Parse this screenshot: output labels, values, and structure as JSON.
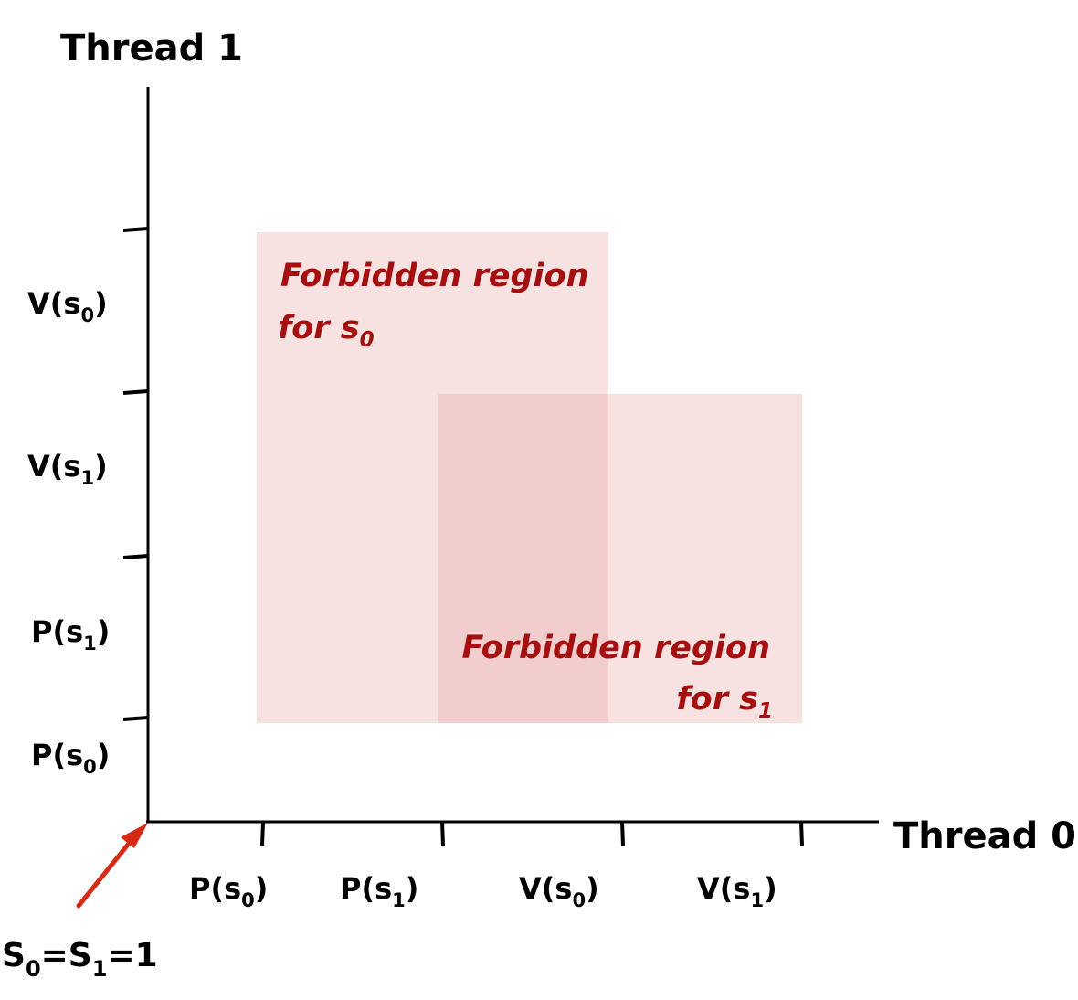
{
  "axes": {
    "y_title": "Thread 1",
    "x_title": "Thread 0"
  },
  "x_ticks": [
    {
      "base": "P(s",
      "sub": "0",
      "close": ")"
    },
    {
      "base": "P(s",
      "sub": "1",
      "close": ")"
    },
    {
      "base": "V(s",
      "sub": "0",
      "close": ")"
    },
    {
      "base": "V(s",
      "sub": "1",
      "close": ")"
    }
  ],
  "y_ticks": [
    {
      "base": "V(s",
      "sub": "0",
      "close": ")"
    },
    {
      "base": "V(s",
      "sub": "1",
      "close": ")"
    },
    {
      "base": "P(s",
      "sub": "1",
      "close": ")"
    },
    {
      "base": "P(s",
      "sub": "0",
      "close": ")"
    }
  ],
  "regions": [
    {
      "line1": "Forbidden region",
      "line2_base": "for s",
      "line2_sub": "0",
      "color": "#e8a8aa",
      "x_range": [
        "P(s0)",
        "V(s0)"
      ],
      "y_range": [
        "P(s0)",
        "V(s0)"
      ]
    },
    {
      "line1": "Forbidden region",
      "line2_base": "for s",
      "line2_sub": "1",
      "color": "#e8a8aa",
      "x_range": [
        "P(s1)",
        "V(s1)"
      ],
      "y_range": [
        "P(s0)",
        "V(s1)"
      ]
    }
  ],
  "start": {
    "s0": "S",
    "s0_sub": "0",
    "eq1": "=S",
    "s1_sub": "1",
    "eq2": "=1",
    "arrow_color": "#d42a16"
  },
  "colors": {
    "region_text": "#a50f0f",
    "region_fill": "#e8a8aa"
  }
}
